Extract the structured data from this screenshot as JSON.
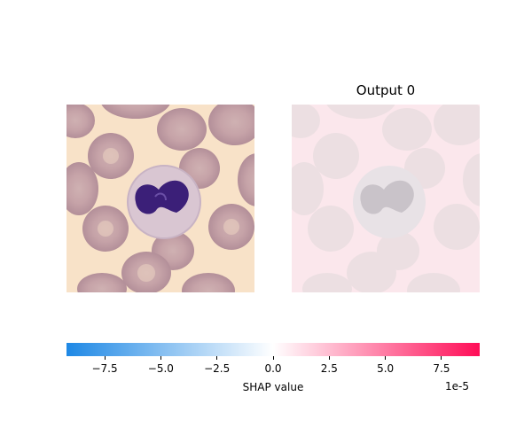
{
  "chart_data": {
    "type": "heatmap",
    "panels": [
      {
        "name": "input-image",
        "title": ""
      },
      {
        "name": "shap-map",
        "title": "Output 0"
      }
    ],
    "colorbar": {
      "label": "SHAP value",
      "scale_label": "1e-5",
      "range": [
        -9.2,
        9.2
      ],
      "ticks": [
        -7.5,
        -5.0,
        -2.5,
        0.0,
        2.5,
        5.0,
        7.5
      ],
      "tick_labels": [
        "−7.5",
        "−5.0",
        "−2.5",
        "0.0",
        "2.5",
        "5.0",
        "7.5"
      ],
      "colors": {
        "negative": "#1e88e5",
        "zero": "#ffffff",
        "positive": "#ff0d57"
      }
    }
  }
}
